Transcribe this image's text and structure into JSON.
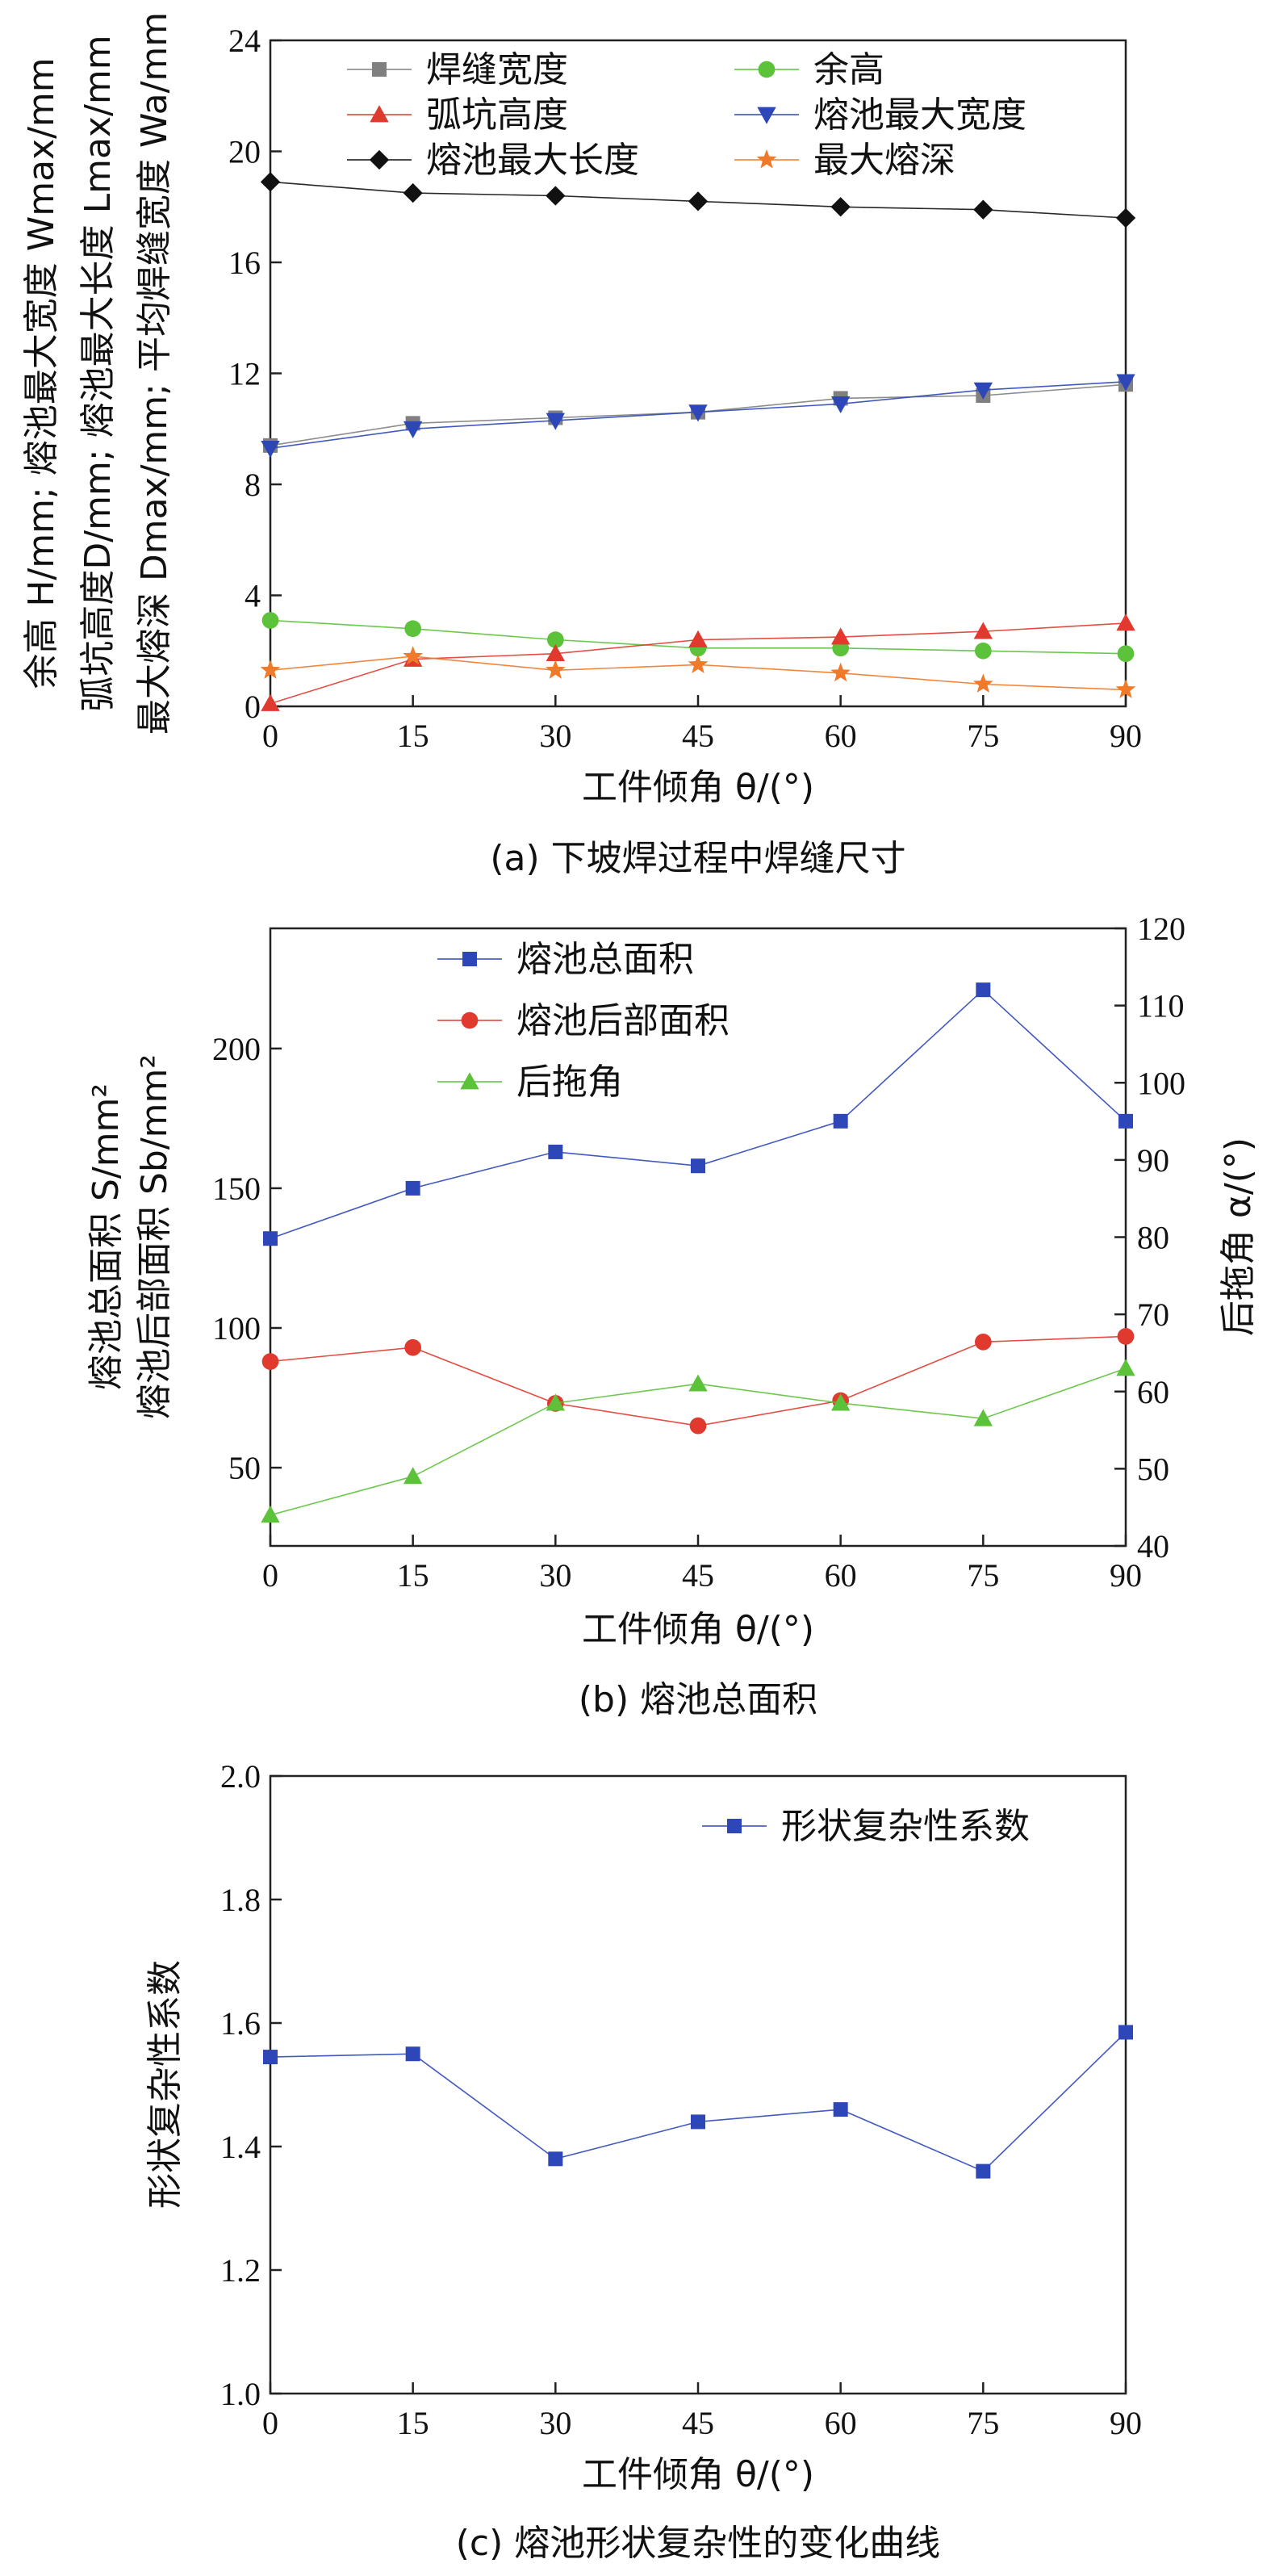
{
  "chart_data": [
    {
      "id": "a",
      "type": "line",
      "caption": "(a) 下坡焊过程中焊缝尺寸",
      "xlabel": "工件倾角 θ/(°)",
      "ylabel_lines": [
        "余高 H/mm; 熔池最大宽度 Wmax/mm",
        "弧坑高度D/mm; 熔池最大长度 Lmax/mm",
        "最大熔深 Dmax/mm; 平均焊缝宽度 Wa/mm"
      ],
      "x": [
        0,
        15,
        30,
        45,
        60,
        75,
        90
      ],
      "xlim": [
        0,
        90
      ],
      "xticks": [
        0,
        15,
        30,
        45,
        60,
        75,
        90
      ],
      "ylim": [
        0,
        24
      ],
      "yticks": [
        0,
        4,
        8,
        12,
        16,
        20,
        24
      ],
      "legend_position": "top",
      "series": [
        {
          "name": "焊缝宽度",
          "marker": "square",
          "color": "#808080",
          "values": [
            9.4,
            10.2,
            10.4,
            10.6,
            11.1,
            11.2,
            11.6
          ]
        },
        {
          "name": "余高",
          "marker": "circle",
          "color": "#5cc23a",
          "values": [
            3.1,
            2.8,
            2.4,
            2.1,
            2.1,
            2.0,
            1.9
          ]
        },
        {
          "name": "弧坑高度",
          "marker": "triangle-up",
          "color": "#e03a2e",
          "values": [
            0.1,
            1.7,
            1.9,
            2.4,
            2.5,
            2.7,
            3.0
          ]
        },
        {
          "name": "熔池最大宽度",
          "marker": "triangle-down",
          "color": "#2e47b8",
          "values": [
            9.3,
            10.0,
            10.3,
            10.6,
            10.9,
            11.4,
            11.7
          ]
        },
        {
          "name": "熔池最大长度",
          "marker": "diamond",
          "color": "#111111",
          "values": [
            18.9,
            18.5,
            18.4,
            18.2,
            18.0,
            17.9,
            17.6
          ]
        },
        {
          "name": "最大熔深",
          "marker": "star",
          "color": "#f07a2a",
          "values": [
            1.3,
            1.8,
            1.3,
            1.5,
            1.2,
            0.8,
            0.6
          ]
        }
      ]
    },
    {
      "id": "b",
      "type": "line",
      "caption": "(b) 熔池总面积",
      "xlabel": "工件倾角 θ/(°)",
      "ylabel_lines": [
        "熔池总面积 S/mm²",
        "熔池后部面积 Sb/mm²"
      ],
      "y2label": "后拖角 α/(°)",
      "x": [
        0,
        15,
        30,
        45,
        60,
        75,
        90
      ],
      "xlim": [
        0,
        90
      ],
      "xticks": [
        0,
        15,
        30,
        45,
        60,
        75,
        90
      ],
      "ylim": [
        22,
        243
      ],
      "yticks": [
        50,
        100,
        150,
        200
      ],
      "y2lim": [
        40,
        120
      ],
      "y2ticks": [
        40,
        50,
        60,
        70,
        80,
        90,
        100,
        110,
        120
      ],
      "legend_position": "top-left",
      "series": [
        {
          "name": "熔池总面积",
          "axis": "left",
          "marker": "square",
          "color": "#2e47b8",
          "values": [
            132,
            150,
            163,
            158,
            174,
            221,
            174
          ]
        },
        {
          "name": "熔池后部面积",
          "axis": "left",
          "marker": "circle",
          "color": "#e03a2e",
          "values": [
            88,
            93,
            73,
            65,
            74,
            95,
            97
          ]
        },
        {
          "name": "后拖角",
          "axis": "right",
          "marker": "triangle-up",
          "color": "#5cc23a",
          "values": [
            44,
            49,
            58.5,
            61,
            58.5,
            56.5,
            63
          ]
        }
      ]
    },
    {
      "id": "c",
      "type": "line",
      "caption": "(c) 熔池形状复杂性的变化曲线",
      "xlabel": "工件倾角 θ/(°)",
      "ylabel": "形状复杂性系数",
      "x": [
        0,
        15,
        30,
        45,
        60,
        75,
        90
      ],
      "xlim": [
        0,
        90
      ],
      "xticks": [
        0,
        15,
        30,
        45,
        60,
        75,
        90
      ],
      "ylim": [
        1.0,
        2.0
      ],
      "yticks": [
        "1.0",
        "1.2",
        "1.4",
        "1.6",
        "1.8",
        "2.0"
      ],
      "legend_position": "top-right",
      "series": [
        {
          "name": "形状复杂性系数",
          "marker": "square",
          "color": "#2e47b8",
          "values": [
            1.545,
            1.55,
            1.38,
            1.44,
            1.46,
            1.36,
            1.585
          ]
        }
      ]
    }
  ]
}
